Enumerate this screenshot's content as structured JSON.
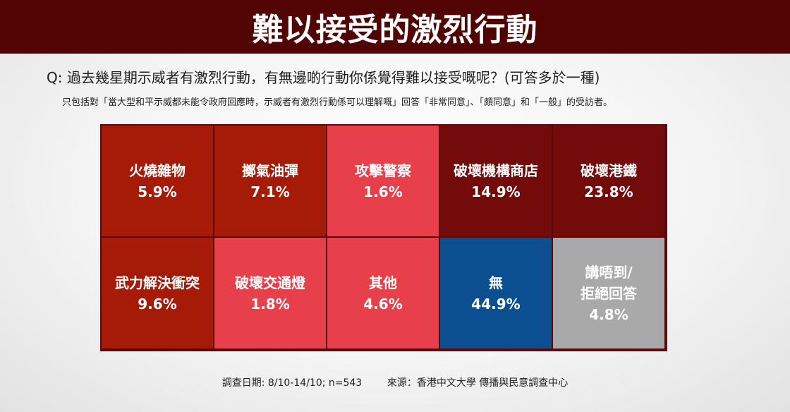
{
  "title": "難以接受的激烈行動",
  "question": "Q: 過去幾星期示威者有激烈行動，有無邊啲行動你係覺得難以接受嘅呢？(可答多於一種)",
  "note": "只包括對「當大型和平示威都未能令政府回應時，示威者有激烈行動係可以理解嘅」回答「非常同意」、「頗同意」和「一般」的受訪者。",
  "footer": {
    "survey_date": "調查日期: 8/10-14/10; n=543",
    "source": "來源：香港中文大學 傳播與民意調查中心"
  },
  "colors": {
    "dark_red": "#a51b08",
    "light_red": "#e8404a",
    "maroon": "#730b0a",
    "blue": "#0b4f90",
    "gray": "#a9a9a9",
    "title_bg": "#520303"
  },
  "chart_data": {
    "type": "table",
    "unit": "%",
    "cells": [
      {
        "label": "火燒雜物",
        "value": "5.9%",
        "number": 5.9,
        "color": "#a51b08"
      },
      {
        "label": "擲氣油彈",
        "value": "7.1%",
        "number": 7.1,
        "color": "#a51b08"
      },
      {
        "label": "攻擊警察",
        "value": "1.6%",
        "number": 1.6,
        "color": "#e8404a"
      },
      {
        "label": "破壞機構商店",
        "value": "14.9%",
        "number": 14.9,
        "color": "#730b0a"
      },
      {
        "label": "破壞港鐵",
        "value": "23.8%",
        "number": 23.8,
        "color": "#730b0a"
      },
      {
        "label": "武力解決衝突",
        "value": "9.6%",
        "number": 9.6,
        "color": "#a51b08"
      },
      {
        "label": "破壞交通燈",
        "value": "1.8%",
        "number": 1.8,
        "color": "#e8404a"
      },
      {
        "label": "其他",
        "value": "4.6%",
        "number": 4.6,
        "color": "#e8404a"
      },
      {
        "label": "無",
        "value": "44.9%",
        "number": 44.9,
        "color": "#0b4f90"
      },
      {
        "label": "講唔到/\n拒絕回答",
        "value": "4.8%",
        "number": 4.8,
        "color": "#a9a9a9"
      }
    ]
  }
}
